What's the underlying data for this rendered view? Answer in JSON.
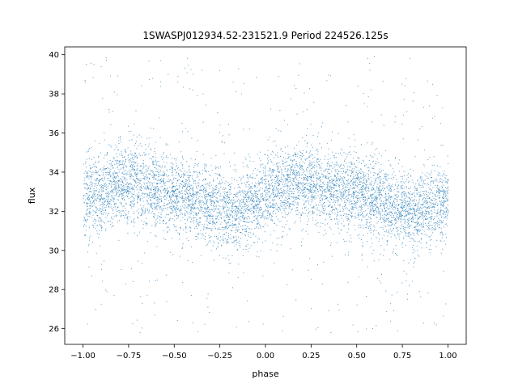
{
  "chart_data": {
    "type": "scatter",
    "title": "1SWASPJ012934.52-231521.9 Period 224526.125s",
    "xlabel": "phase",
    "ylabel": "flux",
    "xlim": [
      -1.1,
      1.1
    ],
    "ylim": [
      25.2,
      40.4
    ],
    "xticks": [
      -1.0,
      -0.75,
      -0.5,
      -0.25,
      0.0,
      0.25,
      0.5,
      0.75,
      1.0
    ],
    "xtick_labels": [
      "−1.00",
      "−0.75",
      "−0.50",
      "−0.25",
      "0.00",
      "0.25",
      "0.50",
      "0.75",
      "1.00"
    ],
    "yticks": [
      26,
      28,
      30,
      32,
      34,
      36,
      38,
      40
    ],
    "ytick_labels": [
      "26",
      "28",
      "30",
      "32",
      "34",
      "36",
      "38",
      "40"
    ],
    "grid": false,
    "legend": "none",
    "marker_color": "#1f77b4",
    "series": [
      {
        "phase_range": [
          -1.0,
          1.0
        ],
        "x": [
          -1.0,
          -0.9,
          -0.8,
          -0.7,
          -0.6,
          -0.5,
          -0.4,
          -0.3,
          -0.2,
          -0.1,
          0.0,
          0.1,
          0.2,
          0.3,
          0.4,
          0.5,
          0.6,
          0.7,
          0.8,
          0.9,
          1.0
        ],
        "mean_flux": [
          32.6,
          33.1,
          33.5,
          33.5,
          33.2,
          33.0,
          32.6,
          32.2,
          32.0,
          32.3,
          32.7,
          33.2,
          33.5,
          33.4,
          33.1,
          32.9,
          32.6,
          32.2,
          32.0,
          32.3,
          32.6
        ],
        "core_band": [
          31.0,
          35.0
        ],
        "outlier_range": [
          25.8,
          40.0
        ]
      }
    ]
  }
}
